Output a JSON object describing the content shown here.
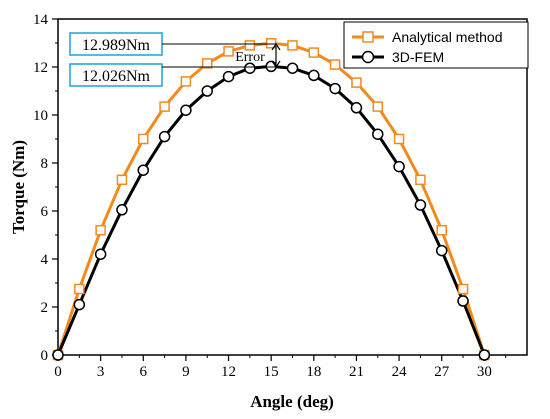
{
  "chart_data": {
    "type": "line",
    "xlabel": "Angle (deg)",
    "ylabel": "Torque (Nm)",
    "xlim": [
      0,
      33
    ],
    "ylim": [
      0,
      14
    ],
    "x_ticks": [
      "0",
      "3",
      "6",
      "9",
      "12",
      "15",
      "18",
      "21",
      "24",
      "27",
      "30"
    ],
    "y_ticks": [
      "0",
      "2",
      "4",
      "6",
      "8",
      "10",
      "12",
      "14"
    ],
    "legend_position": "top-right",
    "grid": false,
    "x": [
      0,
      1.5,
      3,
      4.5,
      6,
      7.5,
      9,
      10.5,
      12,
      13.5,
      15,
      16.5,
      18,
      19.5,
      21,
      22.5,
      24,
      25.5,
      27,
      28.5,
      30
    ],
    "series": [
      {
        "name": "Analytical method",
        "color": "#f28a1e",
        "marker": "square",
        "values": [
          0,
          2.75,
          5.2,
          7.3,
          9.0,
          10.35,
          11.4,
          12.15,
          12.65,
          12.9,
          12.989,
          12.9,
          12.6,
          12.1,
          11.35,
          10.35,
          9.0,
          7.3,
          5.2,
          2.75,
          0
        ]
      },
      {
        "name": "3D-FEM",
        "color": "#000000",
        "marker": "circle",
        "values": [
          0,
          2.1,
          4.2,
          6.05,
          7.7,
          9.1,
          10.2,
          11.0,
          11.6,
          11.95,
          12.026,
          11.95,
          11.65,
          11.1,
          10.3,
          9.2,
          7.85,
          6.25,
          4.35,
          2.25,
          0
        ]
      }
    ],
    "annotations": {
      "analytical_peak": "12.989Nm",
      "fem_peak": "12.026Nm",
      "error_label": "Error"
    }
  }
}
